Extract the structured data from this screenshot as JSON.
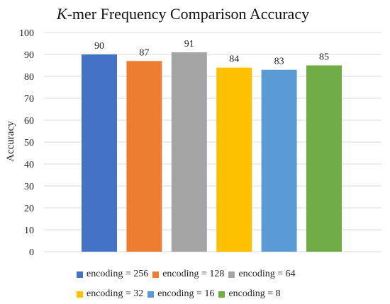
{
  "chart_data": {
    "type": "bar",
    "title_italic": "K",
    "title_rest": "-mer Frequency Comparison Accuracy",
    "ylabel": "Accuracy",
    "xlabel": "",
    "ylim": [
      0,
      100
    ],
    "yticks": [
      0,
      10,
      20,
      30,
      40,
      50,
      60,
      70,
      80,
      90,
      100
    ],
    "grid": true,
    "legend_position": "bottom",
    "series": [
      {
        "name": "encoding = 256",
        "value": 90,
        "color": "#4472C4"
      },
      {
        "name": "encoding = 128",
        "value": 87,
        "color": "#ED7D31"
      },
      {
        "name": "encoding = 64",
        "value": 91,
        "color": "#A5A5A5"
      },
      {
        "name": "encoding = 32",
        "value": 84,
        "color": "#FFC000"
      },
      {
        "name": "encoding = 16",
        "value": 83,
        "color": "#5B9BD5"
      },
      {
        "name": "encoding = 8",
        "value": 85,
        "color": "#70AD47"
      }
    ]
  }
}
